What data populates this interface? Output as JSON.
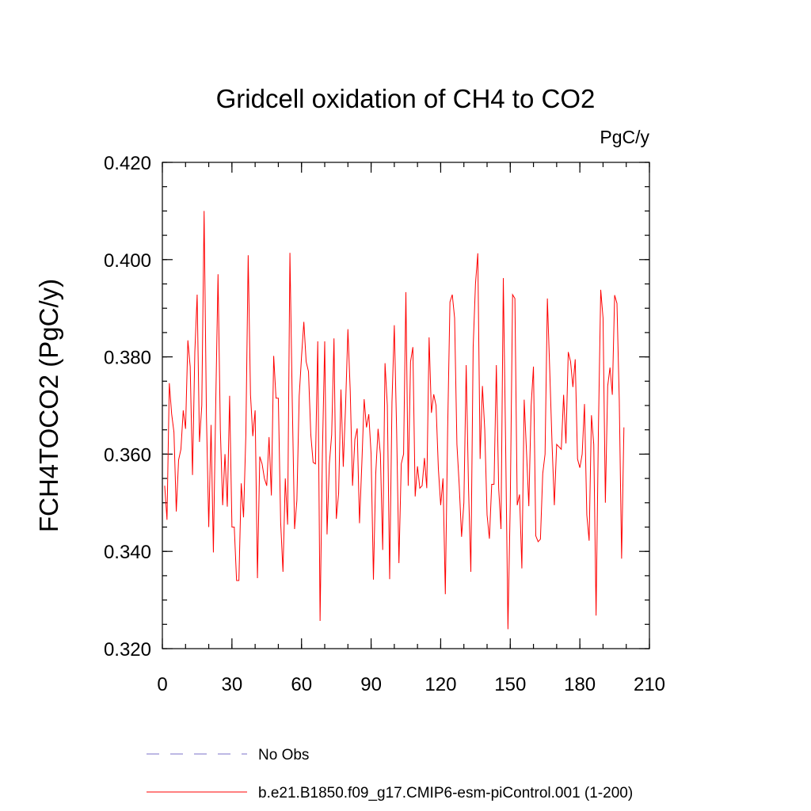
{
  "chart_data": {
    "type": "line",
    "title": "Gridcell oxidation of CH4 to CO2",
    "units": "PgC/y",
    "ylabel": "FCH4TOCO2  (PgC/y)",
    "xlabel": "",
    "xlim": [
      0,
      210
    ],
    "ylim": [
      0.32,
      0.42
    ],
    "x_ticks": [
      0,
      30,
      60,
      90,
      120,
      150,
      180,
      210
    ],
    "x_tick_labels": [
      "0",
      "30",
      "60",
      "90",
      "120",
      "150",
      "180",
      "210"
    ],
    "y_ticks": [
      0.32,
      0.34,
      0.36,
      0.38,
      0.4,
      0.42
    ],
    "y_tick_labels": [
      "0.320",
      "0.340",
      "0.360",
      "0.380",
      "0.400",
      "0.420"
    ],
    "grid": false,
    "legend_position": "bottom",
    "legend": [
      {
        "label": "No Obs",
        "color": "#7b72c9",
        "style": "dashed"
      },
      {
        "label": "b.e21.B1850.f09_g17.CMIP6-esm-piControl.001 (1-200)",
        "color": "#ff0000",
        "style": "solid"
      }
    ],
    "series": [
      {
        "color": "#ff0000",
        "x_start": 1,
        "values": [
          0.3535,
          0.3465,
          0.3746,
          0.3683,
          0.3645,
          0.3482,
          0.3588,
          0.361,
          0.369,
          0.3652,
          0.3834,
          0.378,
          0.3557,
          0.381,
          0.3928,
          0.3625,
          0.37,
          0.41,
          0.368,
          0.345,
          0.366,
          0.3398,
          0.37,
          0.397,
          0.365,
          0.3495,
          0.36,
          0.3492,
          0.372,
          0.345,
          0.345,
          0.334,
          0.334,
          0.354,
          0.347,
          0.364,
          0.4009,
          0.3722,
          0.3637,
          0.369,
          0.3345,
          0.3595,
          0.358,
          0.355,
          0.3535,
          0.3635,
          0.3515,
          0.3802,
          0.3715,
          0.3715,
          0.346,
          0.3358,
          0.355,
          0.3455,
          0.4014,
          0.371,
          0.3446,
          0.3505,
          0.372,
          0.38,
          0.3872,
          0.379,
          0.377,
          0.364,
          0.3583,
          0.358,
          0.3832,
          0.3257,
          0.36,
          0.3832,
          0.3435,
          0.358,
          0.364,
          0.3838,
          0.3467,
          0.352,
          0.3733,
          0.3574,
          0.37,
          0.3857,
          0.373,
          0.3535,
          0.363,
          0.3653,
          0.3458,
          0.358,
          0.3713,
          0.3655,
          0.3682,
          0.36,
          0.3342,
          0.356,
          0.3652,
          0.36,
          0.3403,
          0.3787,
          0.37,
          0.3343,
          0.3707,
          0.3865,
          0.365,
          0.3376,
          0.358,
          0.36,
          0.3933,
          0.3535,
          0.379,
          0.382,
          0.3513,
          0.3575,
          0.353,
          0.3535,
          0.3592,
          0.353,
          0.384,
          0.3685,
          0.3723,
          0.37,
          0.357,
          0.3495,
          0.355,
          0.3312,
          0.365,
          0.3913,
          0.3928,
          0.388,
          0.362,
          0.3535,
          0.343,
          0.35,
          0.3783,
          0.353,
          0.3358,
          0.382,
          0.395,
          0.4013,
          0.359,
          0.374,
          0.365,
          0.3475,
          0.3426,
          0.3538,
          0.3538,
          0.3783,
          0.353,
          0.3446,
          0.3962,
          0.362,
          0.324,
          0.35,
          0.3928,
          0.392,
          0.3495,
          0.3517,
          0.3365,
          0.3712,
          0.3605,
          0.3493,
          0.37,
          0.378,
          0.3432,
          0.342,
          0.3425,
          0.356,
          0.36,
          0.392,
          0.3775,
          0.3623,
          0.3495,
          0.362,
          0.3615,
          0.361,
          0.3722,
          0.3622,
          0.381,
          0.379,
          0.3738,
          0.3795,
          0.359,
          0.3572,
          0.36,
          0.3703,
          0.3475,
          0.3422,
          0.368,
          0.362,
          0.3268,
          0.365,
          0.3938,
          0.388,
          0.35,
          0.374,
          0.3778,
          0.3722,
          0.3927,
          0.391,
          0.371,
          0.3385,
          0.3655
        ]
      }
    ]
  }
}
